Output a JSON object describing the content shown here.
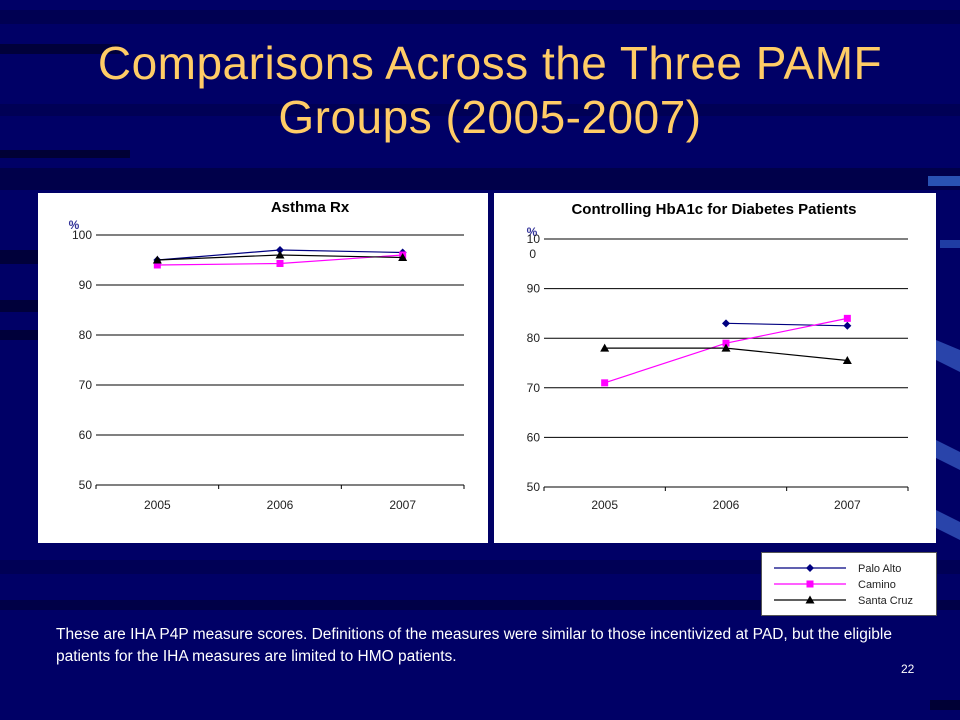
{
  "slide": {
    "title": "Comparisons Across the Three PAMF Groups (2005-2007)",
    "caption": "These are IHA P4P measure scores. Definitions of the measures were similar to those incentivized at PAD, but the eligible patients for the IHA measures are limited to HMO patients.",
    "page_number": "22",
    "colors": {
      "background": "#000066",
      "title": "#FFCC66",
      "caption": "#FFFFFF"
    }
  },
  "legend": [
    {
      "name": "Palo Alto",
      "color": "#000080",
      "marker": "diamond"
    },
    {
      "name": "Camino",
      "color": "#FF00FF",
      "marker": "square"
    },
    {
      "name": "Santa Cruz",
      "color": "#000000",
      "marker": "triangle"
    }
  ],
  "chart_data": [
    {
      "type": "line",
      "title": "Asthma Rx",
      "unit_label": "%",
      "categories": [
        "2005",
        "2006",
        "2007"
      ],
      "yticks": [
        "50",
        "60",
        "70",
        "80",
        "90",
        "100"
      ],
      "ylim": [
        50,
        100
      ],
      "grid": true,
      "series": [
        {
          "name": "Palo Alto",
          "values": [
            95,
            97,
            96.5
          ]
        },
        {
          "name": "Camino",
          "values": [
            94,
            94.3,
            96
          ]
        },
        {
          "name": "Santa Cruz",
          "values": [
            95,
            96,
            95.5
          ]
        }
      ]
    },
    {
      "type": "line",
      "title": "Controlling HbA1c for Diabetes Patients",
      "unit_label": "%",
      "categories": [
        "2005",
        "2006",
        "2007"
      ],
      "yticks": [
        "50",
        "60",
        "70",
        "80",
        "90",
        "10\n0"
      ],
      "ylim": [
        50,
        100
      ],
      "grid": true,
      "series": [
        {
          "name": "Palo Alto",
          "values": [
            null,
            83,
            82.5
          ]
        },
        {
          "name": "Camino",
          "values": [
            71,
            79,
            84
          ]
        },
        {
          "name": "Santa Cruz",
          "values": [
            78,
            78,
            75.5
          ]
        }
      ]
    }
  ]
}
